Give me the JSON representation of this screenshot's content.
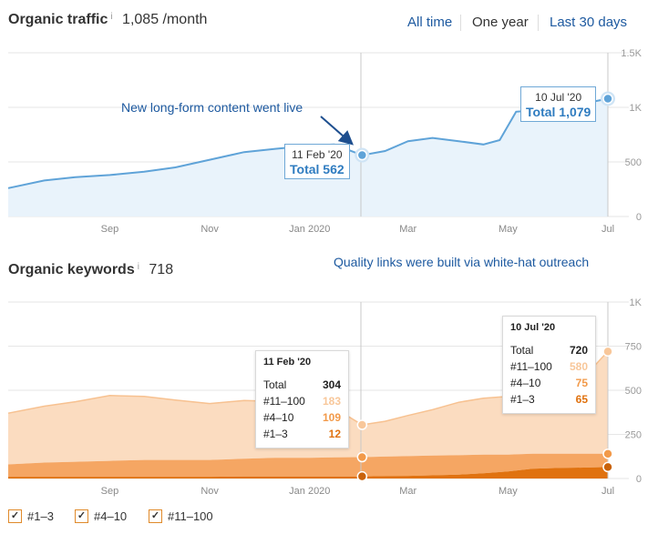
{
  "traffic": {
    "title": "Organic traffic",
    "info": "i",
    "value": "1,085 /month",
    "ranges": [
      "All time",
      "One year",
      "Last 30 days"
    ],
    "active_range": "One year",
    "annotation": "New long-form content went live",
    "tooltip_left": {
      "date": "11 Feb '20",
      "total": "Total 562"
    },
    "tooltip_right": {
      "date": "10 Jul '20",
      "total": "Total 1,079"
    }
  },
  "keywords": {
    "title": "Organic keywords",
    "info": "i",
    "value": "718",
    "annotation": "Quality links were built via white-hat outreach",
    "tooltip_left": {
      "date": "11 Feb '20",
      "rows": [
        {
          "label": "Total",
          "value": "304"
        },
        {
          "label": "#11–100",
          "value": "183"
        },
        {
          "label": "#4–10",
          "value": "109"
        },
        {
          "label": "#1–3",
          "value": "12"
        }
      ]
    },
    "tooltip_right": {
      "date": "10 Jul '20",
      "rows": [
        {
          "label": "Total",
          "value": "720"
        },
        {
          "label": "#11–100",
          "value": "580"
        },
        {
          "label": "#4–10",
          "value": "75"
        },
        {
          "label": "#1–3",
          "value": "65"
        }
      ]
    },
    "legend": [
      {
        "label": "#1–3",
        "checked": true,
        "color": "#e0720f"
      },
      {
        "label": "#4–10",
        "checked": true,
        "color": "#f29a4a"
      },
      {
        "label": "#11–100",
        "checked": true,
        "color": "#f8c79a"
      }
    ],
    "checkmark": "✓"
  },
  "chart_data": [
    {
      "type": "area",
      "title": "Organic traffic",
      "x_tick_labels": [
        "Sep",
        "Nov",
        "Jan 2020",
        "Mar",
        "May",
        "Jul"
      ],
      "y_tick_labels": [
        "1.5K",
        "1K",
        "500",
        "0"
      ],
      "ylim": [
        0,
        1500
      ],
      "grid": true,
      "series": [
        {
          "color": "#5fa3d8",
          "x": [
            "2019-07-10",
            "2019-08-01",
            "2019-08-20",
            "2019-09-10",
            "2019-10-01",
            "2019-10-20",
            "2019-11-10",
            "2019-12-01",
            "2019-12-20",
            "2020-01-10",
            "2020-01-25",
            "2020-02-11",
            "2020-02-25",
            "2020-03-10",
            "2020-03-25",
            "2020-04-10",
            "2020-04-25",
            "2020-05-05",
            "2020-05-15",
            "2020-06-01",
            "2020-06-20",
            "2020-07-10"
          ],
          "values": [
            260,
            330,
            360,
            380,
            410,
            450,
            520,
            590,
            620,
            650,
            660,
            562,
            600,
            690,
            720,
            690,
            660,
            700,
            960,
            980,
            1020,
            1079
          ]
        }
      ]
    },
    {
      "type": "area",
      "title": "Organic keywords",
      "x_tick_labels": [
        "Sep",
        "Nov",
        "Jan 2020",
        "Mar",
        "May",
        "Jul"
      ],
      "y_tick_labels": [
        "1K",
        "750",
        "500",
        "250",
        "0"
      ],
      "ylim": [
        0,
        1000
      ],
      "grid": true,
      "stacked": true,
      "categories": [
        "2019-07-10",
        "2019-08-01",
        "2019-08-20",
        "2019-09-10",
        "2019-10-01",
        "2019-10-20",
        "2019-11-10",
        "2019-12-01",
        "2019-12-20",
        "2020-01-10",
        "2020-01-25",
        "2020-02-11",
        "2020-02-25",
        "2020-03-10",
        "2020-03-25",
        "2020-04-10",
        "2020-04-25",
        "2020-05-10",
        "2020-05-25",
        "2020-06-10",
        "2020-06-25",
        "2020-07-10"
      ],
      "series": [
        {
          "name": "#1–3",
          "color": "#e0720f",
          "values": [
            10,
            10,
            10,
            10,
            10,
            10,
            10,
            12,
            12,
            12,
            12,
            12,
            14,
            15,
            18,
            22,
            30,
            40,
            55,
            60,
            62,
            65
          ]
        },
        {
          "name": "#4–10",
          "color": "#f29a4a",
          "values": [
            70,
            80,
            85,
            90,
            95,
            95,
            95,
            100,
            105,
            105,
            108,
            109,
            110,
            112,
            112,
            110,
            105,
            95,
            85,
            80,
            78,
            75
          ]
        },
        {
          "name": "#11–100",
          "color": "#f8c79a",
          "values": [
            290,
            320,
            340,
            370,
            360,
            340,
            320,
            330,
            320,
            310,
            280,
            183,
            200,
            230,
            260,
            300,
            320,
            330,
            340,
            380,
            430,
            580
          ]
        }
      ]
    }
  ]
}
